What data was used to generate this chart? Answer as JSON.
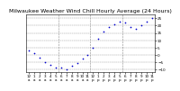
{
  "title": "Milwaukee Weather Wind Chill",
  "subtitle": "Hourly Average",
  "subtitle2": "(24 Hours)",
  "hours": [
    0,
    1,
    2,
    3,
    4,
    5,
    6,
    7,
    8,
    9,
    10,
    11,
    12,
    13,
    14,
    15,
    16,
    17,
    18,
    19,
    20,
    21,
    22,
    23
  ],
  "wind_chill": [
    3,
    1,
    -2,
    -5,
    -7,
    -9,
    -9,
    -10,
    -8,
    -6,
    -3,
    0,
    5,
    11,
    16,
    19,
    21,
    23,
    22,
    19,
    18,
    20,
    23,
    25
  ],
  "dot_color": "#0000cc",
  "bg_color": "#ffffff",
  "grid_color": "#888888",
  "ylim": [
    -12,
    28
  ],
  "yticks": [
    -10,
    -5,
    0,
    5,
    10,
    15,
    20,
    25
  ],
  "xtick_labels": [
    "12",
    "1",
    "2",
    "3",
    "4",
    "5",
    "6",
    "7",
    "8",
    "9",
    "10",
    "11",
    "12",
    "1",
    "2",
    "3",
    "4",
    "5",
    "6",
    "7",
    "8",
    "9",
    "10",
    "11"
  ],
  "xtick_sublabels": [
    "a",
    "a",
    "a",
    "a",
    "a",
    "a",
    "a",
    "a",
    "a",
    "a",
    "a",
    "a",
    "p",
    "p",
    "p",
    "p",
    "p",
    "p",
    "p",
    "p",
    "p",
    "p",
    "p",
    "p"
  ],
  "vline_positions": [
    5.5,
    11.5,
    17.5
  ],
  "title_fontsize": 4.5,
  "tick_fontsize": 3.0,
  "dot_size": 1.5
}
